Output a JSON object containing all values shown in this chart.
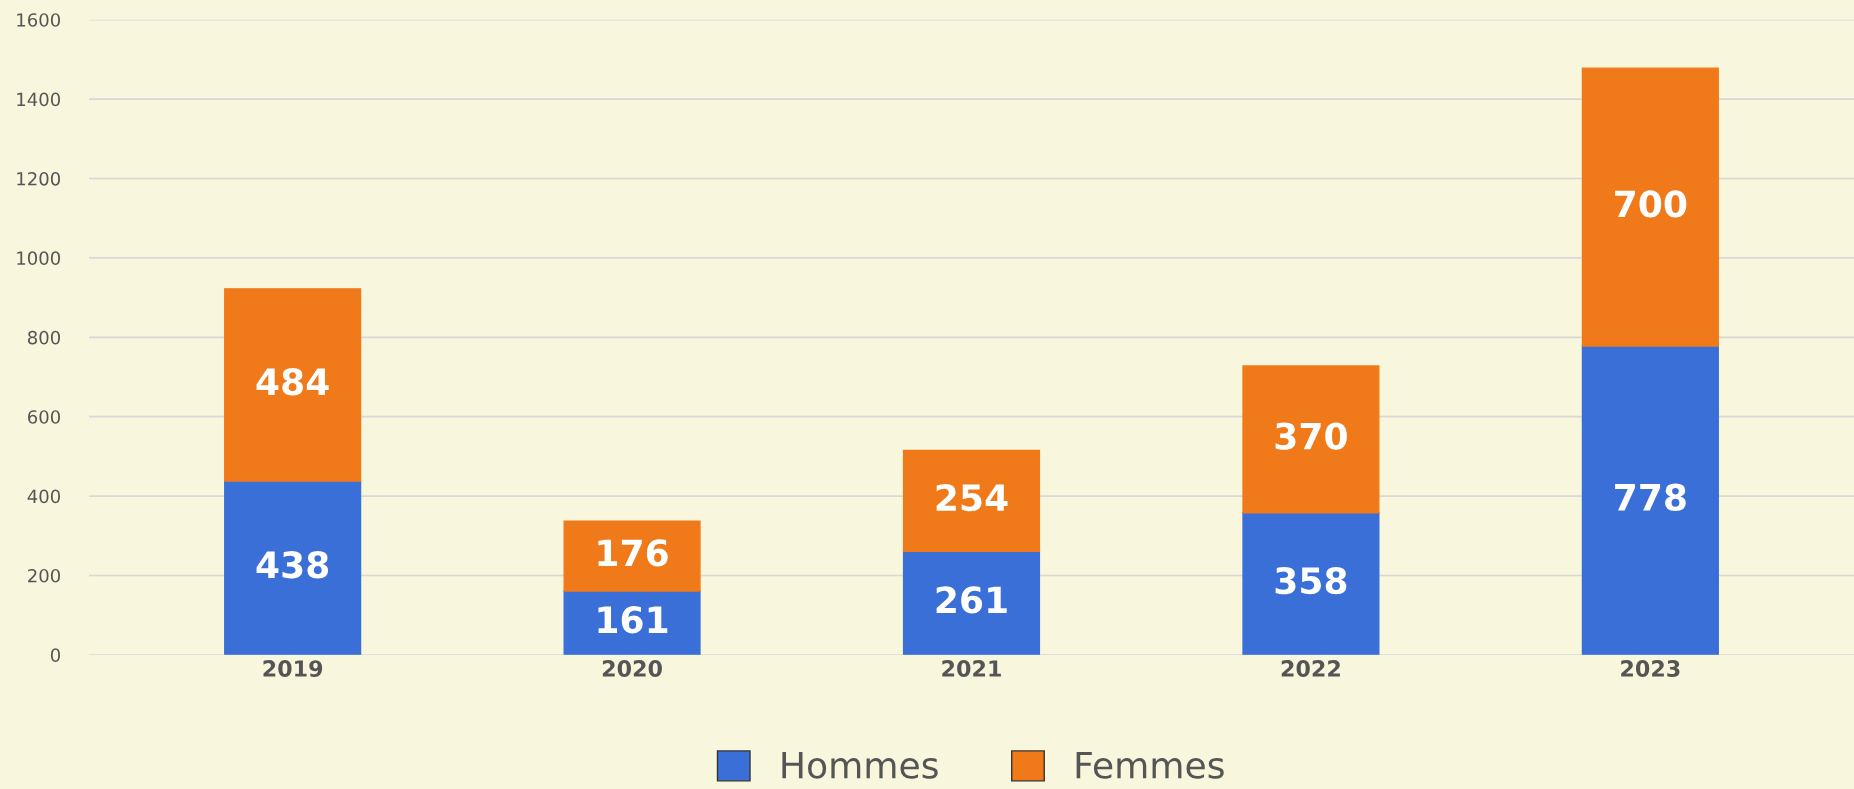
{
  "chart_data": {
    "type": "bar",
    "stacked": true,
    "categories": [
      "2019",
      "2020",
      "2021",
      "2022",
      "2023"
    ],
    "series": [
      {
        "name": "Hommes",
        "color": "#3a6fd8",
        "values": [
          438,
          161,
          261,
          358,
          778
        ]
      },
      {
        "name": "Femmes",
        "color": "#f07a1a",
        "values": [
          484,
          176,
          254,
          370,
          700
        ]
      }
    ],
    "ylim": [
      0,
      1600
    ],
    "yticks": [
      0,
      200,
      400,
      600,
      800,
      1000,
      1200,
      1400,
      1600
    ],
    "grid": "y",
    "legend": "bottom",
    "data_labels": true
  }
}
